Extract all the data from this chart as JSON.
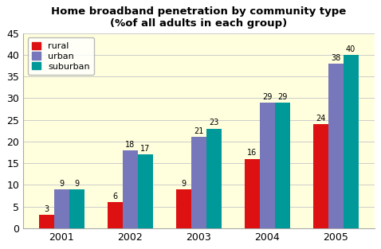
{
  "title": "Home broadband penetration by community type",
  "subtitle": "(%of all adults in each group)",
  "years": [
    2001,
    2002,
    2003,
    2004,
    2005
  ],
  "rural": [
    3,
    6,
    9,
    16,
    24
  ],
  "urban": [
    9,
    18,
    21,
    29,
    38
  ],
  "suburban": [
    9,
    17,
    23,
    29,
    40
  ],
  "bar_colors": {
    "rural": "#dd1111",
    "urban": "#7777bb",
    "suburban": "#009999"
  },
  "ylim": [
    0,
    45
  ],
  "yticks": [
    0,
    5,
    10,
    15,
    20,
    25,
    30,
    35,
    40,
    45
  ],
  "background_color": "#ffffdd",
  "fig_background": "#ffffff",
  "grid_color": "#cccccc",
  "bar_width": 0.22
}
